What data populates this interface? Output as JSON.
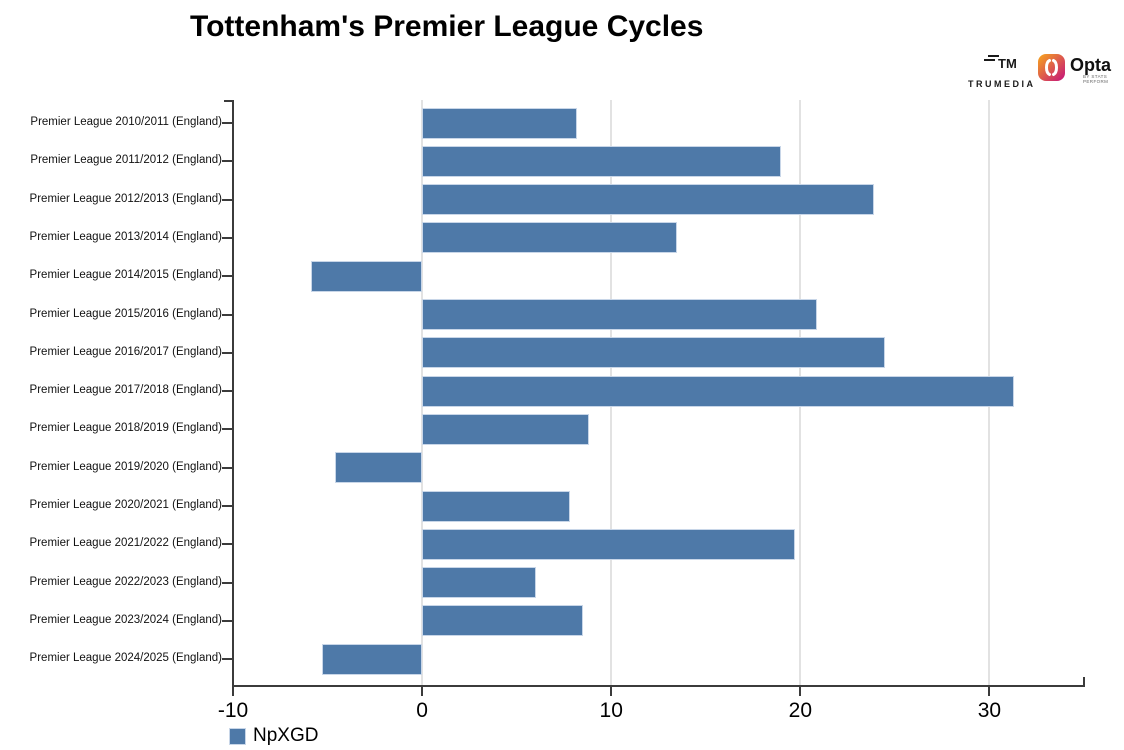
{
  "title": "Tottenham's Premier League Cycles",
  "branding": {
    "trumedia_label": "TRUMEDIA",
    "opta_label": "Opta",
    "opta_sub_label": "by STATS PERFORM",
    "opta_gradient_top": "#F7A71B",
    "opta_gradient_bottom": "#C4117D"
  },
  "legend": {
    "label": "NpXGD",
    "swatch_color": "#4e79a8"
  },
  "chart_data": {
    "type": "bar",
    "orientation": "horizontal",
    "title": "Tottenham's Premier League Cycles",
    "categories": [
      "Premier League 2010/2011 (England)",
      "Premier League 2011/2012 (England)",
      "Premier League 2012/2013 (England)",
      "Premier League 2013/2014 (England)",
      "Premier League 2014/2015 (England)",
      "Premier League 2015/2016 (England)",
      "Premier League 2016/2017 (England)",
      "Premier League 2017/2018 (England)",
      "Premier League 2018/2019 (England)",
      "Premier League 2019/2020 (England)",
      "Premier League 2020/2021 (England)",
      "Premier League 2021/2022 (England)",
      "Premier League 2022/2023 (England)",
      "Premier League 2023/2024 (England)",
      "Premier League 2024/2025 (England)"
    ],
    "series": [
      {
        "name": "NpXGD",
        "values": [
          8.2,
          19.0,
          23.9,
          13.5,
          -5.9,
          20.9,
          24.5,
          31.3,
          8.8,
          -4.6,
          7.8,
          19.7,
          6.0,
          8.5,
          -5.3
        ]
      }
    ],
    "xlabel": "",
    "ylabel": "",
    "xlim": [
      -10,
      35
    ],
    "x_ticks": [
      -10,
      0,
      10,
      20,
      30
    ],
    "grid": "vertical",
    "legend_position": "bottom-left",
    "bar_color": "#4e79a8",
    "bar_border_color": "#c8d6e8",
    "axis_color": "#3b3b3b",
    "gridline_color": "#e2e2e2"
  }
}
